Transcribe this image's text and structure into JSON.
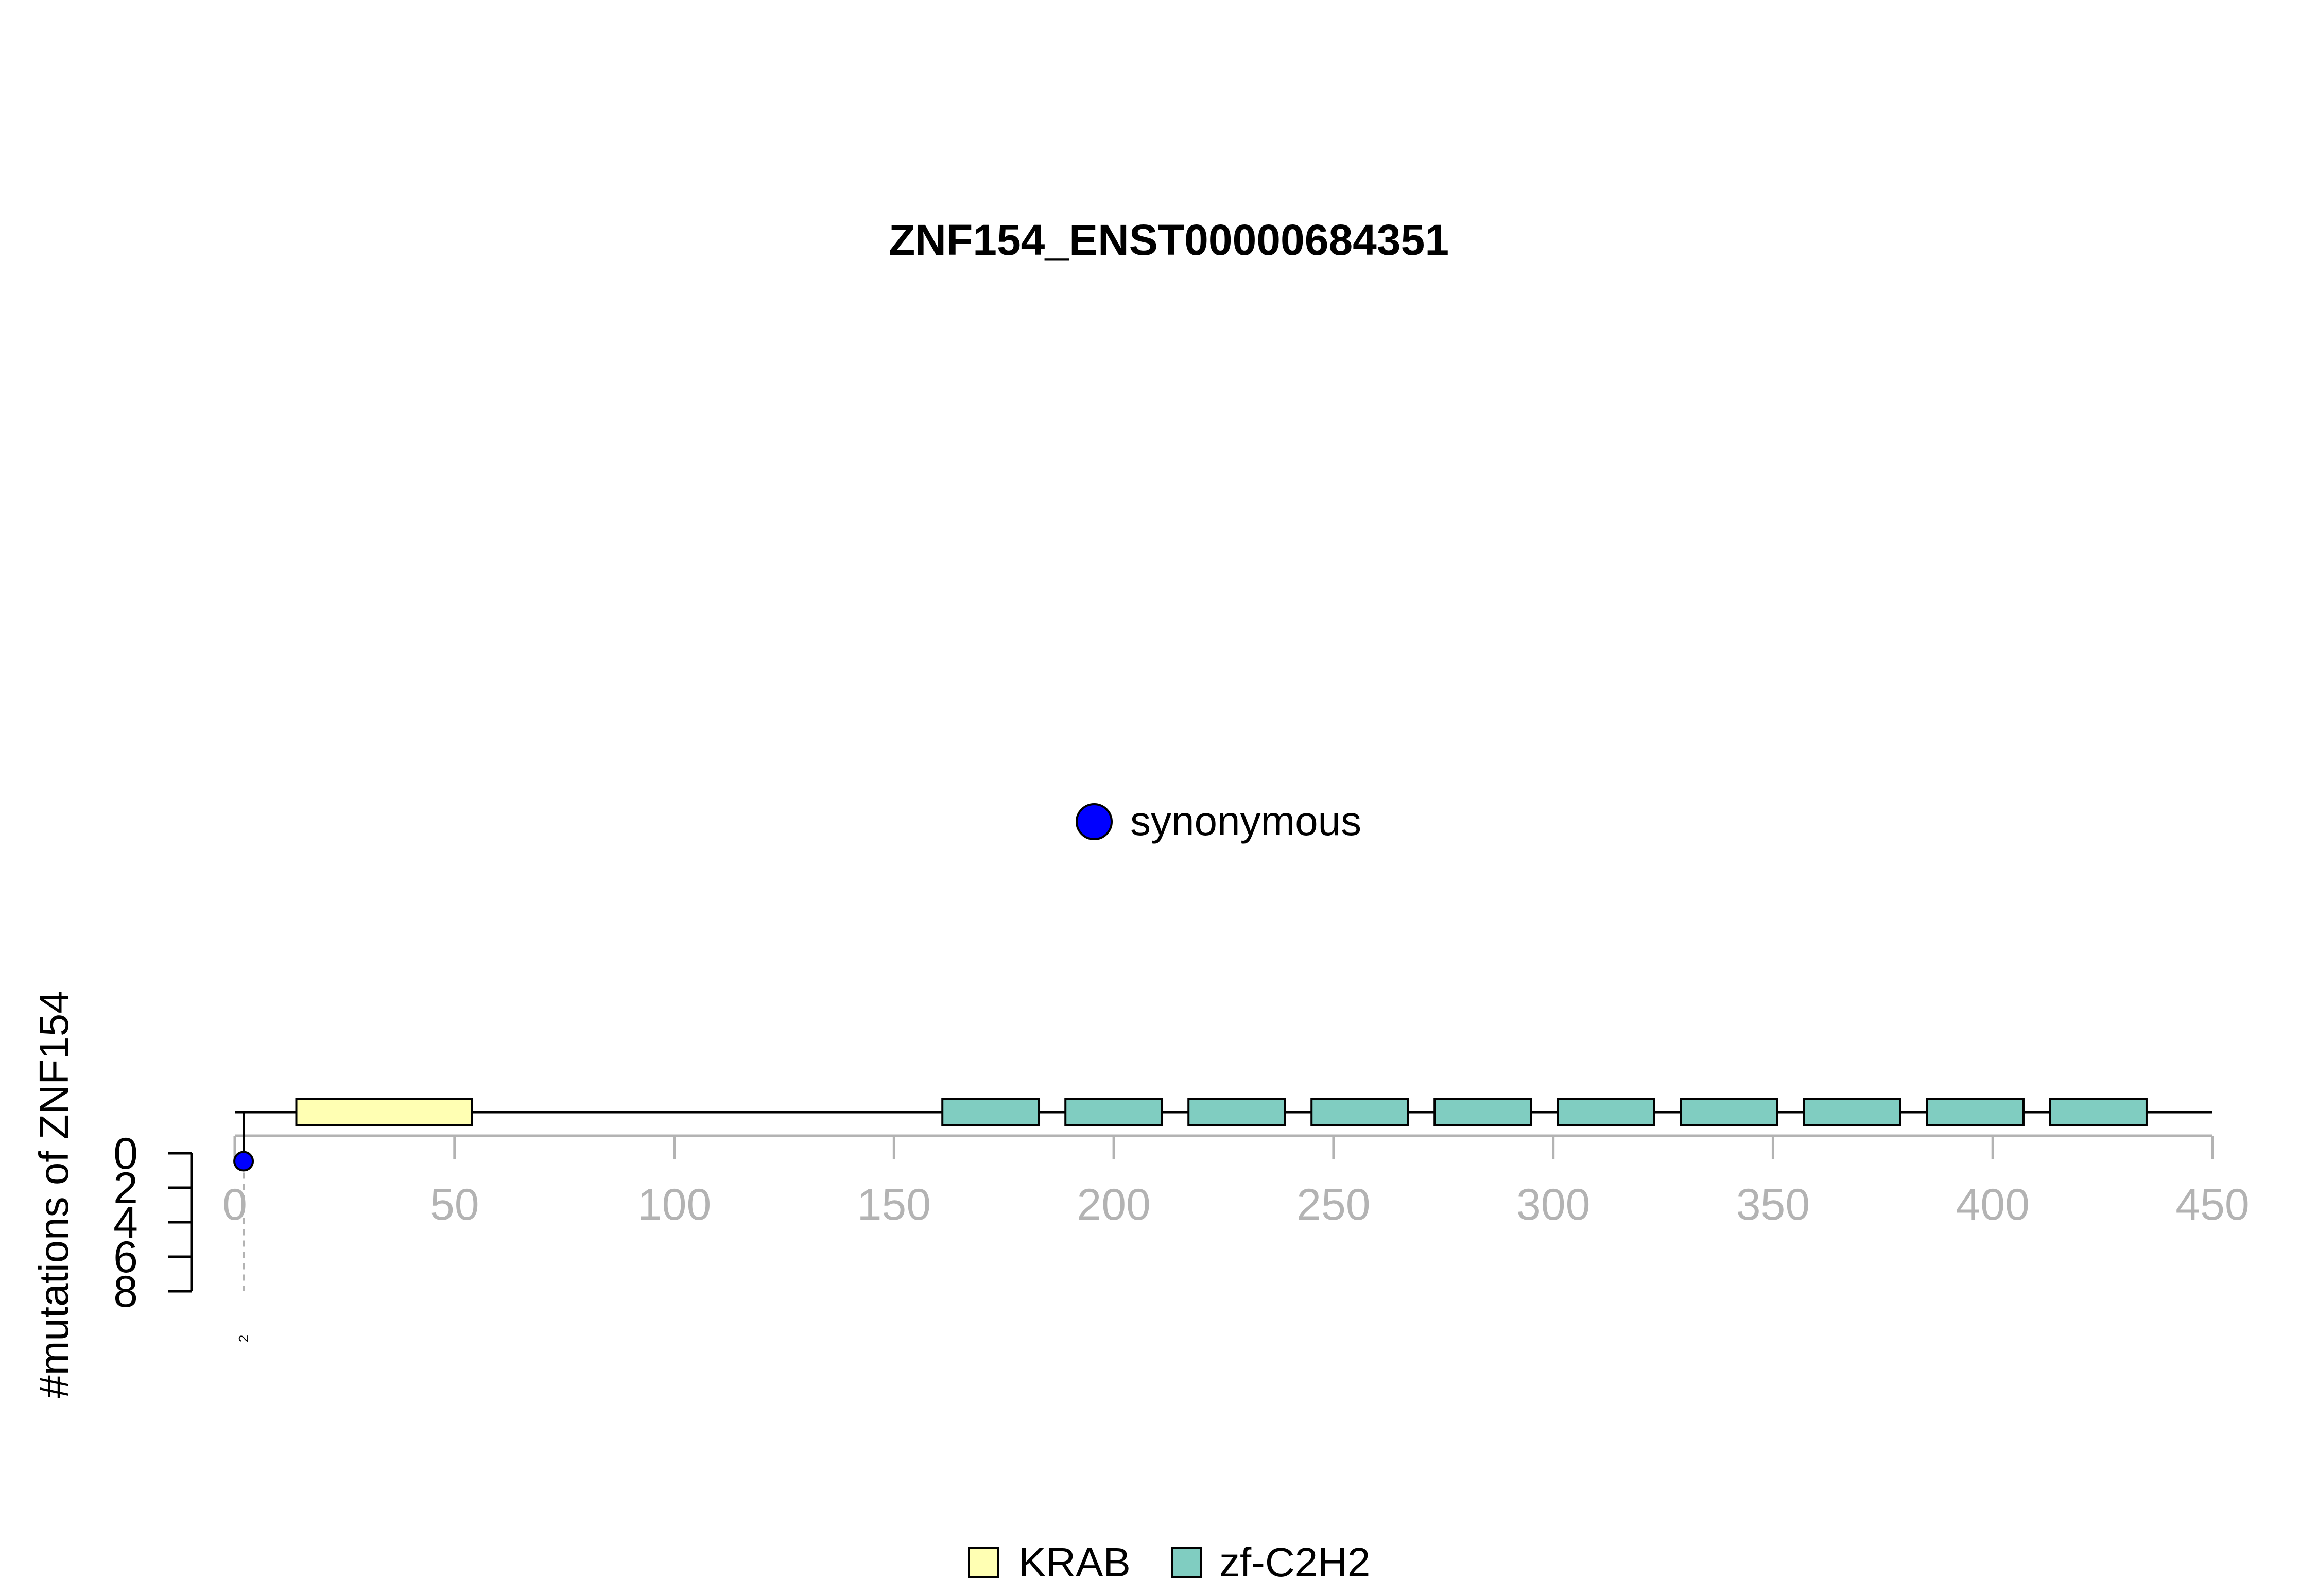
{
  "chart_data": {
    "type": "lollipop",
    "title": "ZNF154_ENST00000684351",
    "ylabel": "#mutations of ZNF154",
    "xlim": [
      0,
      450
    ],
    "x_ticks": [
      0,
      50,
      100,
      150,
      200,
      250,
      300,
      350,
      400,
      450
    ],
    "y_ticks": [
      0,
      2,
      4,
      6,
      8
    ],
    "ylim": [
      0,
      8
    ],
    "mutation_legend": [
      {
        "label": "synonymous",
        "color": "#0000ff"
      }
    ],
    "mutations": [
      {
        "position": 2,
        "count": 1,
        "type": "synonymous",
        "label": "2",
        "color": "#0000ff"
      }
    ],
    "domain_legend": [
      {
        "label": "KRAB",
        "color": "#ffffb3"
      },
      {
        "label": "zf-C2H2",
        "color": "#80cdc1"
      }
    ],
    "domains": [
      {
        "name": "KRAB",
        "start": 14,
        "end": 54,
        "color": "#ffffb3"
      },
      {
        "name": "zf-C2H2",
        "start": 161,
        "end": 183,
        "color": "#80cdc1"
      },
      {
        "name": "zf-C2H2",
        "start": 189,
        "end": 211,
        "color": "#80cdc1"
      },
      {
        "name": "zf-C2H2",
        "start": 217,
        "end": 239,
        "color": "#80cdc1"
      },
      {
        "name": "zf-C2H2",
        "start": 245,
        "end": 267,
        "color": "#80cdc1"
      },
      {
        "name": "zf-C2H2",
        "start": 273,
        "end": 295,
        "color": "#80cdc1"
      },
      {
        "name": "zf-C2H2",
        "start": 301,
        "end": 323,
        "color": "#80cdc1"
      },
      {
        "name": "zf-C2H2",
        "start": 329,
        "end": 351,
        "color": "#80cdc1"
      },
      {
        "name": "zf-C2H2",
        "start": 357,
        "end": 379,
        "color": "#80cdc1"
      },
      {
        "name": "zf-C2H2",
        "start": 385,
        "end": 407,
        "color": "#80cdc1"
      },
      {
        "name": "zf-C2H2",
        "start": 413,
        "end": 435,
        "color": "#80cdc1"
      }
    ]
  }
}
